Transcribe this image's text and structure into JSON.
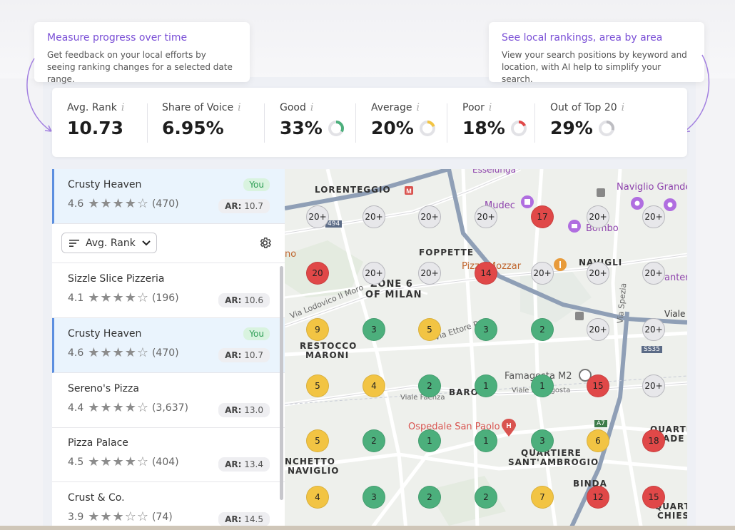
{
  "tooltips": {
    "left": {
      "title": "Measure progress over time",
      "body": "Get feedback on your local efforts by seeing ranking changes for a selected date range."
    },
    "right": {
      "title": "See local rankings, area by area",
      "body": "View your search positions by keyword and location, with AI help to simplify your search."
    }
  },
  "kpis": [
    {
      "label": "Avg. Rank",
      "value": "10.73"
    },
    {
      "label": "Share of Voice",
      "value": "6.95%"
    },
    {
      "label": "Good",
      "value": "33%",
      "ring_color": "#4caf7c",
      "ring_fraction": 0.33
    },
    {
      "label": "Average",
      "value": "20%",
      "ring_color": "#f2c443",
      "ring_fraction": 0.2
    },
    {
      "label": "Poor",
      "value": "18%",
      "ring_color": "#e04848",
      "ring_fraction": 0.18
    },
    {
      "label": "Out of Top 20",
      "value": "29%",
      "ring_color": "#bdbdc2",
      "ring_fraction": 0.29
    }
  ],
  "info_glyph": "i",
  "sort": {
    "label": "Avg. Rank"
  },
  "you_label": "You",
  "ar_prefix": "AR:",
  "businesses": [
    {
      "name": "Crusty Heaven",
      "rating": "4.6",
      "stars": 4,
      "reviews": "(470)",
      "ar": "10.7",
      "you": true
    },
    {
      "name": "Sizzle Slice Pizzeria",
      "rating": "4.1",
      "stars": 4,
      "reviews": "(196)",
      "ar": "10.6",
      "you": false
    },
    {
      "name": "Crusty Heaven",
      "rating": "4.6",
      "stars": 4,
      "reviews": "(470)",
      "ar": "10.7",
      "you": true
    },
    {
      "name": "Sereno's Pizza",
      "rating": "4.4",
      "stars": 4,
      "reviews": "(3,637)",
      "ar": "13.0",
      "you": false
    },
    {
      "name": "Pizza Palace",
      "rating": "4.5",
      "stars": 4,
      "reviews": "(404)",
      "ar": "13.4",
      "you": false
    },
    {
      "name": "Crust & Co.",
      "rating": "3.9",
      "stars": 3,
      "reviews": "(74)",
      "ar": "14.5",
      "you": false
    }
  ],
  "map_labels": {
    "lorenteggio": "LORENTEGGIO",
    "foppette": "FOPPETTE",
    "navigli": "NAVIGLI",
    "zone6a": "ZONE 6",
    "zone6b": "OF MILAN",
    "restocco1": "RESTOCCO",
    "restocco2": "MARONI",
    "baro": "BARO",
    "quartiere1": "QUARTIERE",
    "quartiere2": "SANT'AMBROGIO",
    "binda": "BINDA",
    "nchetto1": "NCHETTO",
    "nchetto2": "NAVIGLIO",
    "quartie_r1": "QUARTIE",
    "quartie_r2": "ADE",
    "quartie_r3": "QUART",
    "quartie_r4": "CHIES",
    "ospedale": "Ospedale San Paolo",
    "famagosta": "Famagosta M2",
    "mudec": "Mudec",
    "bombo": "Bombo",
    "naviglio_grande": "Naviglio Grande",
    "pizza_mozzar": "Pizza Mozzar",
    "esselunga": "Esselunga",
    "viale_lodovico": "Via Lodovico Il Moro",
    "via_ettore": "Via Ettore P",
    "viale_famagosta": "Viale Famagosta",
    "viale_faenza": "Viale Faenza",
    "via_spezia": "Via Spezia",
    "viale": "Viale",
    "antero": "antero",
    "no": "no",
    "ss35": "SS35",
    "a7": "A7",
    "road_e494": "494"
  },
  "grid_pins": [
    [
      "20+",
      "20+",
      "20+",
      "20+",
      "17",
      "20+",
      "20+"
    ],
    [
      "20",
      "20+",
      "20+",
      "14",
      "20+",
      "20+",
      "20+"
    ],
    [
      "9",
      "3",
      "5",
      "3",
      "2",
      "20+",
      "20+"
    ],
    [
      "5",
      "4",
      "2",
      "1",
      "1",
      "15",
      "20+"
    ],
    [
      "5",
      "2",
      "1",
      "1",
      "3",
      "6",
      "18"
    ],
    [
      "4",
      "3",
      "2",
      "2",
      "7",
      "12",
      "15"
    ]
  ],
  "pin_colors": {
    "gray": "#e7e7ea",
    "red": "#e04848",
    "green": "#4caf7c",
    "yellow": "#f2c443"
  },
  "accent": "#7a4fd6"
}
